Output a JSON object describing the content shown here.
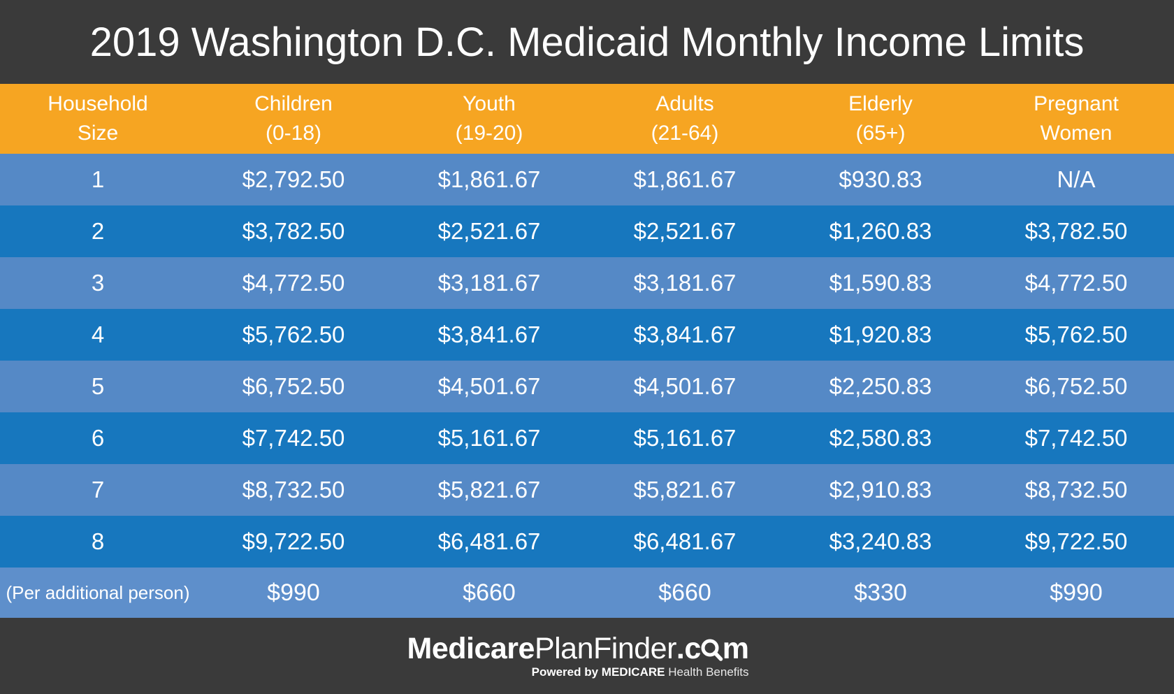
{
  "chart_data": {
    "type": "table",
    "title": "2019 Washington D.C. Medicaid Monthly Income Limits",
    "columns": [
      "Household Size",
      "Children (0-18)",
      "Youth (19-20)",
      "Adults (21-64)",
      "Elderly (65+)",
      "Pregnant Women"
    ],
    "column_lines": [
      [
        "Household",
        "Size"
      ],
      [
        "Children",
        "(0-18)"
      ],
      [
        "Youth",
        "(19-20)"
      ],
      [
        "Adults",
        "(21-64)"
      ],
      [
        "Elderly",
        "(65+)"
      ],
      [
        "Pregnant",
        "Women"
      ]
    ],
    "rows": [
      [
        "1",
        "$2,792.50",
        "$1,861.67",
        "$1,861.67",
        "$930.83",
        "N/A"
      ],
      [
        "2",
        "$3,782.50",
        "$2,521.67",
        "$2,521.67",
        "$1,260.83",
        "$3,782.50"
      ],
      [
        "3",
        "$4,772.50",
        "$3,181.67",
        "$3,181.67",
        "$1,590.83",
        "$4,772.50"
      ],
      [
        "4",
        "$5,762.50",
        "$3,841.67",
        "$3,841.67",
        "$1,920.83",
        "$5,762.50"
      ],
      [
        "5",
        "$6,752.50",
        "$4,501.67",
        "$4,501.67",
        "$2,250.83",
        "$6,752.50"
      ],
      [
        "6",
        "$7,742.50",
        "$5,161.67",
        "$5,161.67",
        "$2,580.83",
        "$7,742.50"
      ],
      [
        "7",
        "$8,732.50",
        "$5,821.67",
        "$5,821.67",
        "$2,910.83",
        "$8,732.50"
      ],
      [
        "8",
        "$9,722.50",
        "$6,481.67",
        "$6,481.67",
        "$3,240.83",
        "$9,722.50"
      ]
    ],
    "per_additional_row": [
      "(Per additional person)",
      "$990",
      "$660",
      "$660",
      "$330",
      "$990"
    ],
    "layout": "striped table, light/dark blue alternating rows starting light, orange header band, all text white and centered"
  },
  "footer": {
    "logo_bold": "Medicare",
    "logo_regular": "PlanFinder",
    "logo_suffix_before_icon": ".c",
    "logo_suffix_after_icon": "m",
    "logo_icon": "magnifier-icon",
    "tagline_bold": "Powered by MEDICARE",
    "tagline_light": "Health Benefits"
  },
  "colors": {
    "header_bg": "#F6A522",
    "row_light": "#5589C6",
    "row_dark": "#1777BE",
    "extra_row_bg": "#5E8FCB",
    "band_bg": "#3A3A3A",
    "text": "#FFFFFF"
  }
}
